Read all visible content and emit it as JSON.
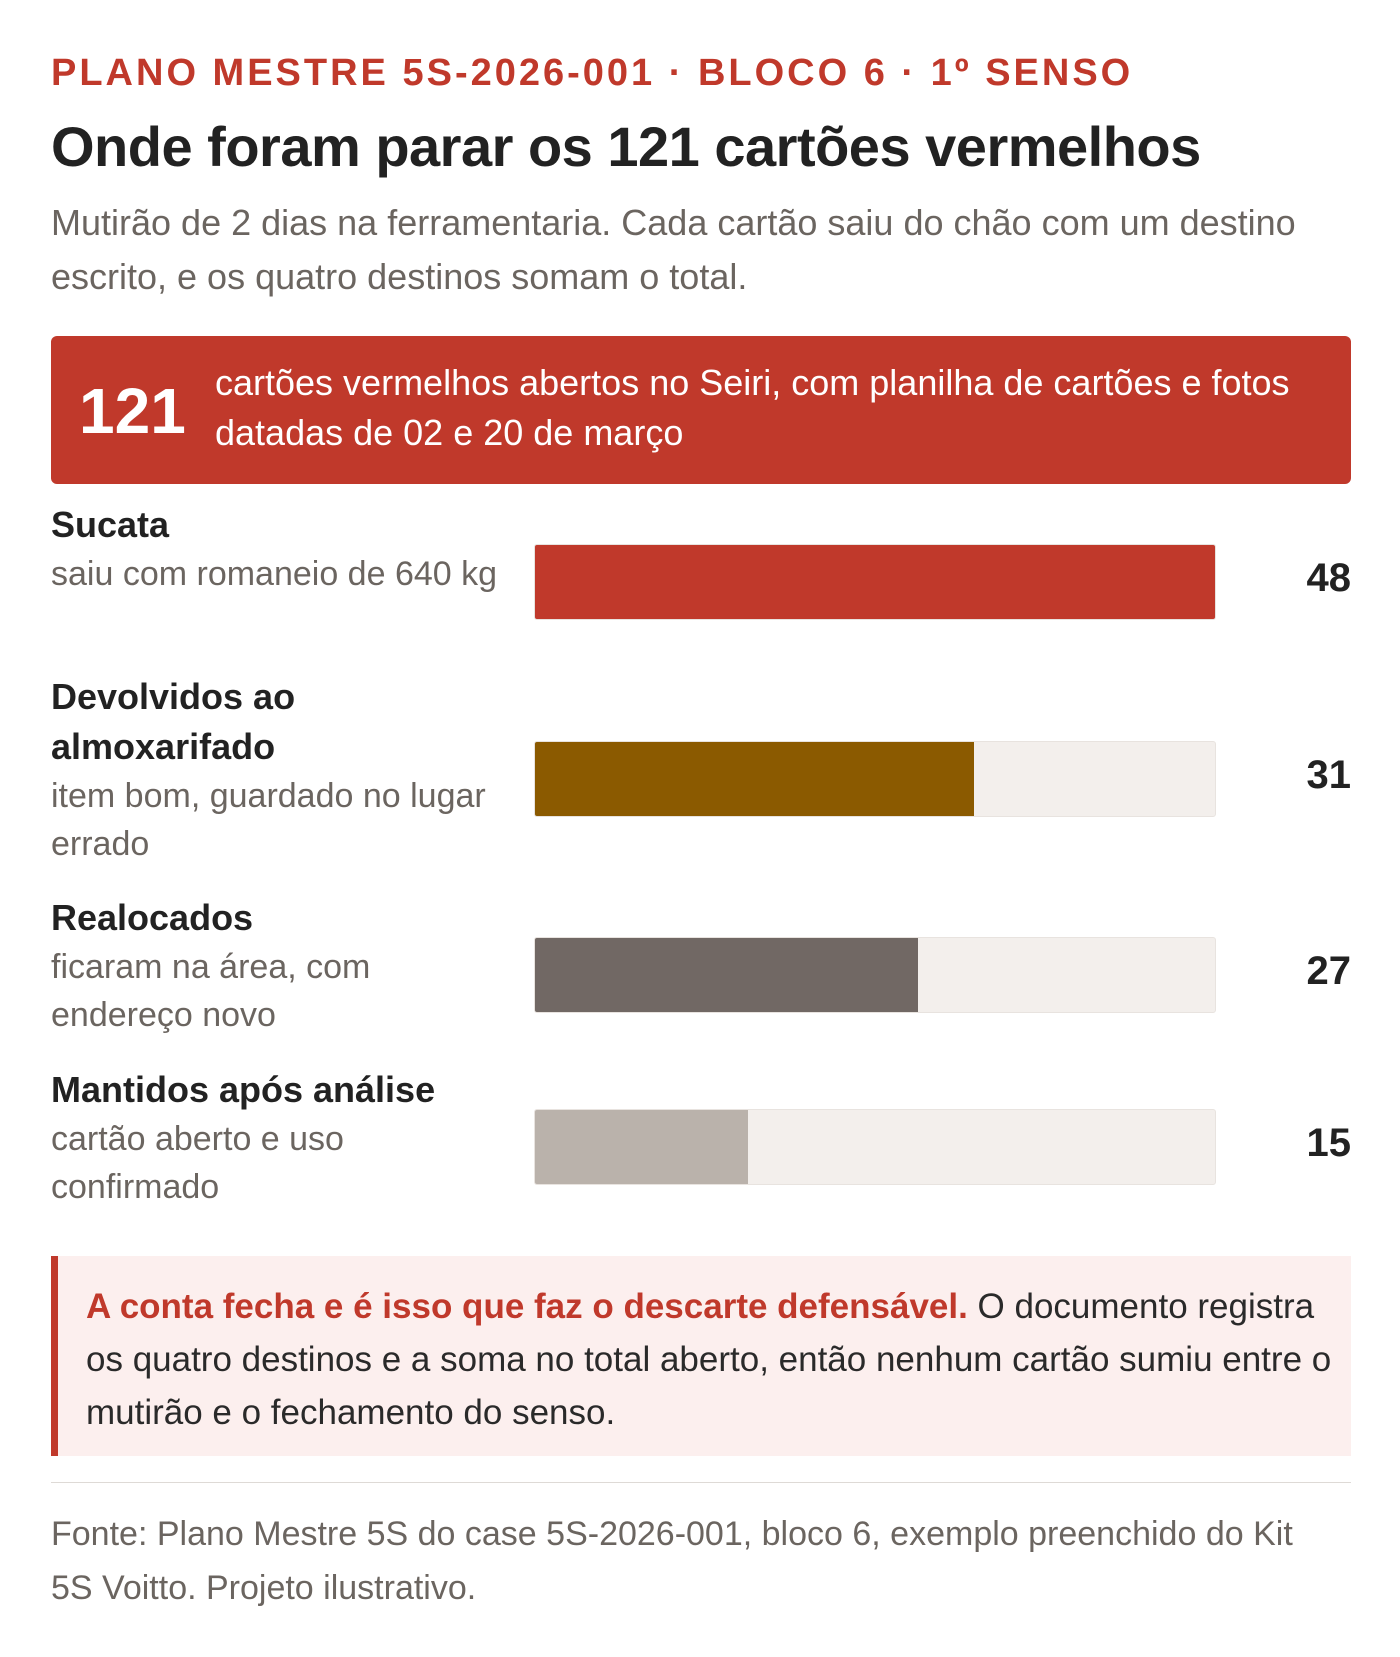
{
  "header": {
    "kicker": "PLANO MESTRE 5S-2026-001 · BLOCO 6 · 1º SENSO",
    "title": "Onde foram parar os 121 cartões vermelhos",
    "subtitle": "Mutirão de 2 dias na ferramentaria. Cada cartão saiu do chão com um destino escrito, e os quatro destinos somam o total."
  },
  "banner": {
    "number": "121",
    "text": "cartões vermelhos abertos no Seiri, com planilha de cartões e fotos datadas de 02 e 20 de março"
  },
  "colors": {
    "accent": "#c0392b",
    "track": "#f3efec",
    "sucata": "#c0392b",
    "devolvidos": "#8b5a00",
    "realocados": "#716864",
    "mantidos": "#bab2ab"
  },
  "chart_data": {
    "type": "bar",
    "orientation": "horizontal",
    "categories": [
      "Sucata",
      "Devolvidos ao almoxarifado",
      "Realocados",
      "Mantidos após análise"
    ],
    "descriptions": [
      "saiu com romaneio de 640 kg",
      "item bom, guardado no lugar errado",
      "ficaram na área, com endereço novo",
      "cartão aberto e uso confirmado"
    ],
    "values": [
      48,
      31,
      27,
      15
    ],
    "colors": [
      "#c0392b",
      "#8b5a00",
      "#716864",
      "#bab2ab"
    ],
    "xlim": [
      0,
      48
    ],
    "grid": false,
    "title": "",
    "xlabel": "",
    "ylabel": ""
  },
  "callout": {
    "strong": "A conta fecha e é isso que faz o descarte defensável.",
    "text": " O documento registra os quatro destinos e a soma no total aberto, então nenhum cartão sumiu entre o mutirão e o fechamento do senso."
  },
  "footer": {
    "source": "Fonte: Plano Mestre 5S do case 5S-2026-001, bloco 6, exemplo preenchido do Kit 5S Voitto. Projeto ilustrativo."
  }
}
